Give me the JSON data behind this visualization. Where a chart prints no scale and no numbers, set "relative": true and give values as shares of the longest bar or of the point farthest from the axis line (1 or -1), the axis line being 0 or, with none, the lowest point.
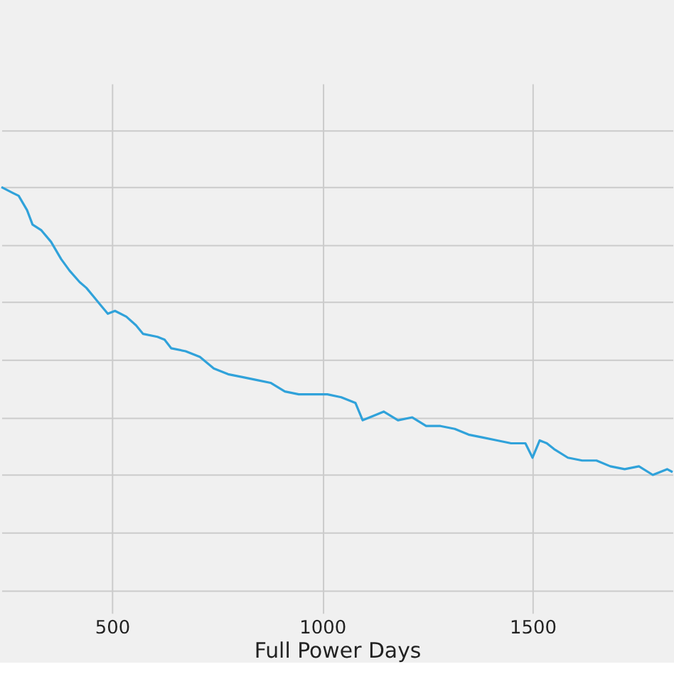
{
  "chart_data": {
    "type": "line",
    "xlabel": "Full Power Days",
    "relative": true,
    "xlim": [
      237,
      1833
    ],
    "xticks": [
      500,
      1000,
      1500
    ],
    "grid": true,
    "marker": "none",
    "line_style": "solid",
    "series": [
      {
        "color": "#30a2da",
        "x": [
          237,
          264,
          278,
          298,
          311,
          332,
          355,
          379,
          399,
          423,
          439,
          456,
          473,
          490,
          507,
          534,
          557,
          574,
          608,
          625,
          641,
          675,
          709,
          742,
          776,
          810,
          843,
          877,
          911,
          944,
          978,
          1012,
          1045,
          1079,
          1096,
          1113,
          1146,
          1180,
          1214,
          1247,
          1281,
          1315,
          1348,
          1382,
          1416,
          1449,
          1483,
          1500,
          1517,
          1534,
          1551,
          1584,
          1618,
          1652,
          1685,
          1719,
          1753,
          1786,
          1820,
          1833
        ],
        "values": [
          1,
          0.98,
          0.97,
          0.92,
          0.87,
          0.85,
          0.81,
          0.75,
          0.71,
          0.67,
          0.65,
          0.62,
          0.59,
          0.56,
          0.57,
          0.55,
          0.52,
          0.49,
          0.48,
          0.47,
          0.44,
          0.43,
          0.41,
          0.37,
          0.35,
          0.34,
          0.33,
          0.32,
          0.29,
          0.28,
          0.28,
          0.28,
          0.27,
          0.25,
          0.19,
          0.2,
          0.22,
          0.19,
          0.2,
          0.17,
          0.17,
          0.16,
          0.14,
          0.13,
          0.12,
          0.11,
          0.11,
          0.06,
          0.12,
          0.11,
          0.09,
          0.06,
          0.05,
          0.05,
          0.03,
          0.02,
          0.03,
          0,
          0.02,
          0.01
        ]
      }
    ]
  }
}
